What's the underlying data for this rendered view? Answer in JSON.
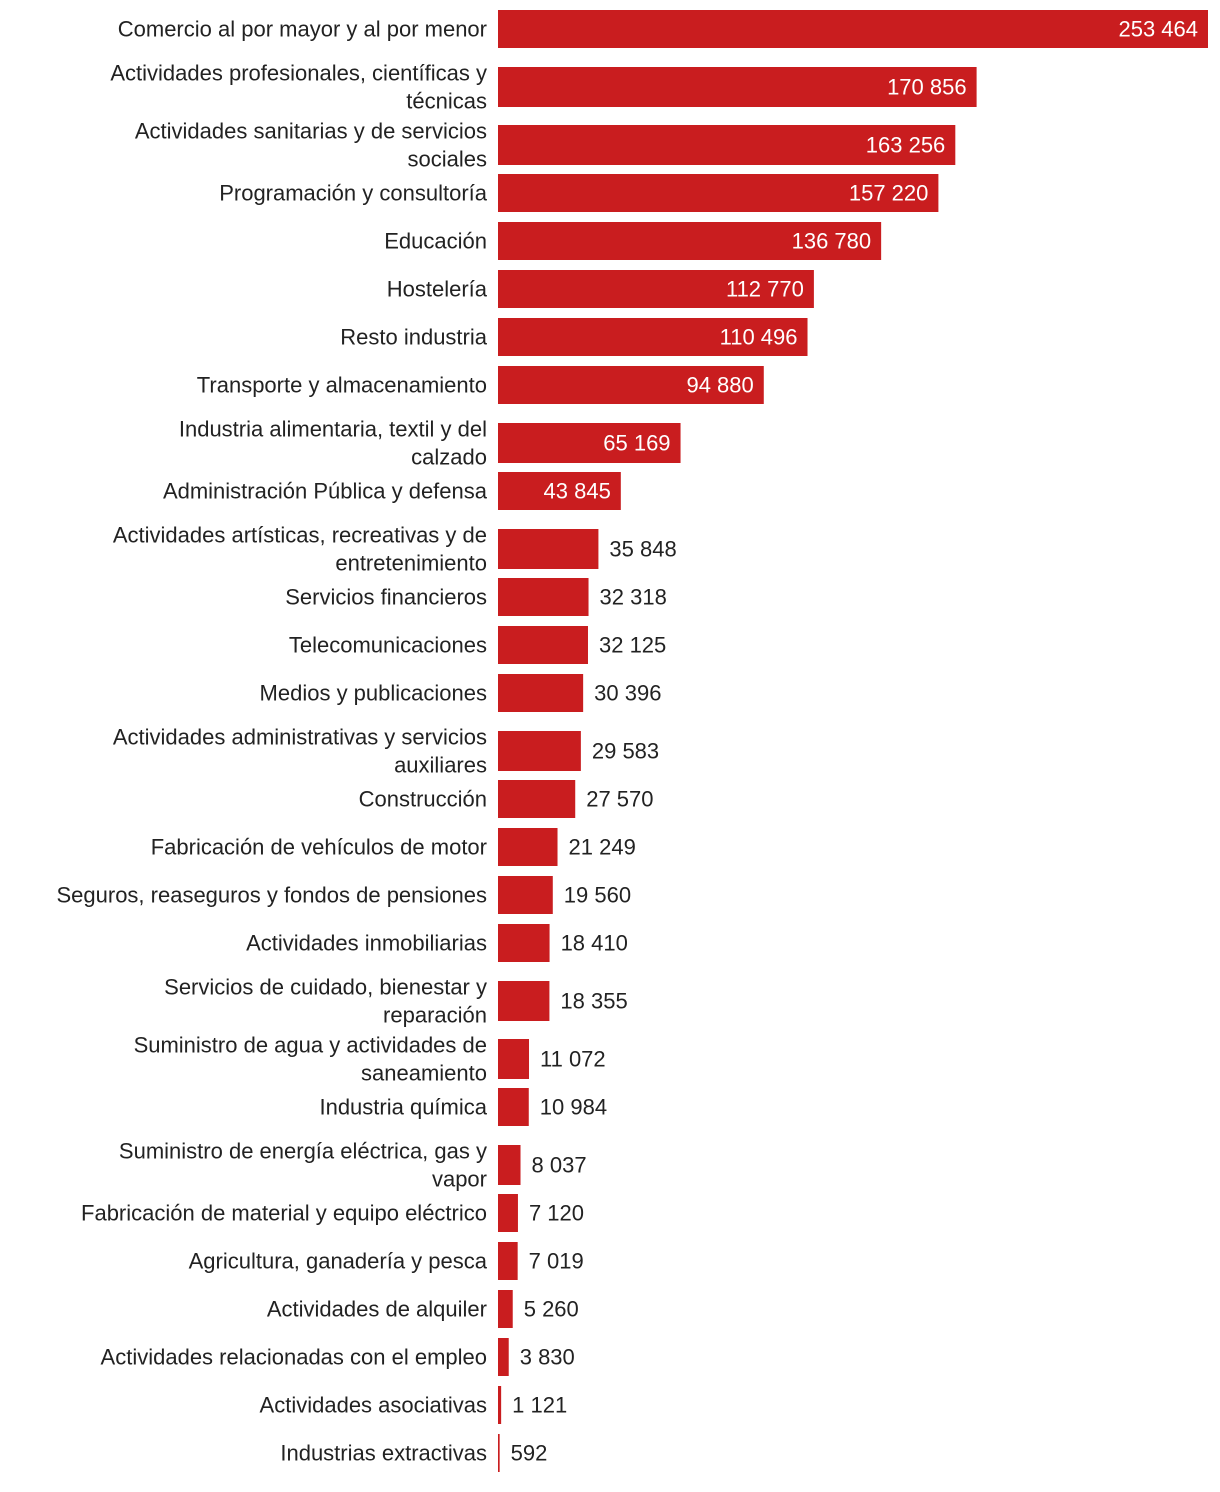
{
  "chart_data": {
    "type": "bar",
    "orientation": "horizontal",
    "bar_color": "#c91d1f",
    "label_inside_color": "#ffffff",
    "label_outside_color": "#222222",
    "categories": [
      "Comercio al por mayor y al por menor",
      "Actividades profesionales, científicas y técnicas",
      "Actividades sanitarias y de servicios sociales",
      "Programación y consultoría",
      "Educación",
      "Hostelería",
      "Resto industria",
      "Transporte y almacenamiento",
      "Industria alimentaria, textil y del calzado",
      "Administración Pública y defensa",
      "Actividades artísticas, recreativas y de entretenimiento",
      "Servicios financieros",
      "Telecomunicaciones",
      "Medios y publicaciones",
      "Actividades administrativas y servicios auxiliares",
      "Construcción",
      "Fabricación de vehículos de motor",
      "Seguros, reaseguros y fondos de pensiones",
      "Actividades inmobiliarias",
      "Servicios de cuidado, bienestar y reparación",
      "Suministro de agua y actividades de saneamiento",
      "Industria química",
      "Suministro de energía eléctrica, gas y vapor",
      "Fabricación de material y equipo eléctrico",
      "Agricultura, ganadería y pesca",
      "Actividades de alquiler",
      "Actividades relacionadas con el empleo",
      "Actividades asociativas",
      "Industrias extractivas"
    ],
    "values": [
      253464,
      170856,
      163256,
      157220,
      136780,
      112770,
      110496,
      94880,
      65169,
      43845,
      35848,
      32318,
      32125,
      30396,
      29583,
      27570,
      21249,
      19560,
      18410,
      18355,
      11072,
      10984,
      8037,
      7120,
      7019,
      5260,
      3830,
      1121,
      592
    ],
    "value_labels": [
      "253 464",
      "170 856",
      "163 256",
      "157 220",
      "136 780",
      "112 770",
      "110 496",
      "94 880",
      "65 169",
      "43 845",
      "35 848",
      "32 318",
      "32 125",
      "30 396",
      "29 583",
      "27 570",
      "21 249",
      "19 560",
      "18 410",
      "18 355",
      "11 072",
      "10 984",
      "8 037",
      "7 120",
      "7 019",
      "5 260",
      "3 830",
      "1 121",
      "592"
    ],
    "xlim": [
      0,
      253464
    ],
    "grid": false,
    "legend": "none"
  }
}
